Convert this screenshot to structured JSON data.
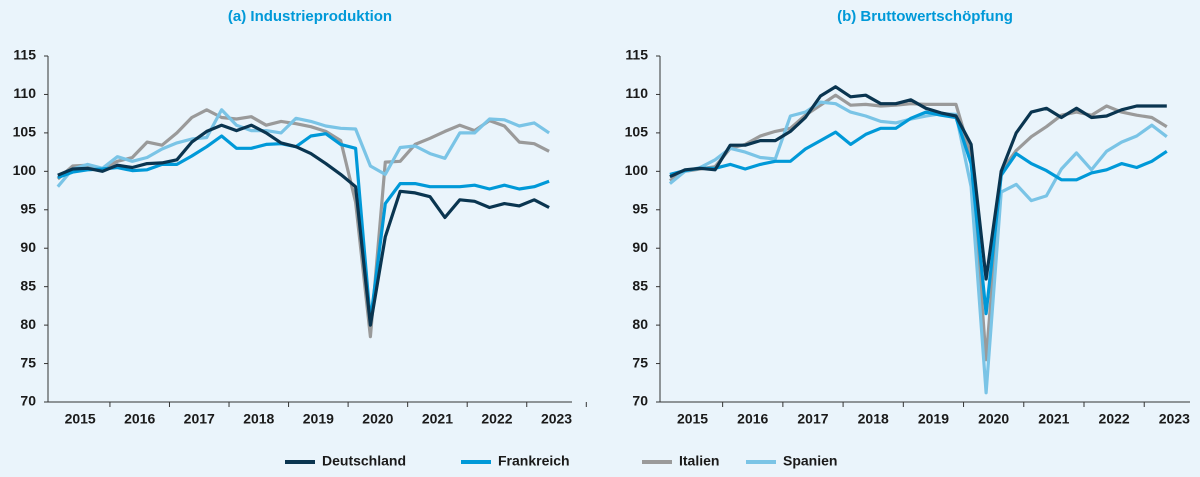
{
  "chart_data": [
    {
      "type": "line",
      "title": "(a)  Industrieproduktion",
      "x": [
        2015.125,
        2015.375,
        2015.625,
        2015.875,
        2016.125,
        2016.375,
        2016.625,
        2016.875,
        2017.125,
        2017.375,
        2017.625,
        2017.875,
        2018.125,
        2018.375,
        2018.625,
        2018.875,
        2019.125,
        2019.375,
        2019.625,
        2019.875,
        2020.125,
        2020.375,
        2020.625,
        2020.875,
        2021.125,
        2021.375,
        2021.625,
        2021.875,
        2022.125,
        2022.375,
        2022.625,
        2022.875,
        2023.125,
        2023.375
      ],
      "xlim": [
        2014.96,
        2023.76
      ],
      "xticks": [
        {
          "value": 2015.5,
          "label": "2015"
        },
        {
          "value": 2016.5,
          "label": "2016"
        },
        {
          "value": 2017.5,
          "label": "2017"
        },
        {
          "value": 2018.5,
          "label": "2018"
        },
        {
          "value": 2019.5,
          "label": "2019"
        },
        {
          "value": 2020.5,
          "label": "2020"
        },
        {
          "value": 2021.5,
          "label": "2021"
        },
        {
          "value": 2022.5,
          "label": "2022"
        },
        {
          "value": 2023.5,
          "label": "2023"
        }
      ],
      "ylim": [
        70,
        115
      ],
      "yticks": [
        70,
        75,
        80,
        85,
        90,
        95,
        100,
        105,
        110,
        115
      ],
      "series": [
        {
          "name": "Deutschland",
          "color": "#0a3550",
          "values": [
            99.5,
            100.3,
            100.4,
            100,
            100.8,
            100.5,
            101,
            101.1,
            101.5,
            103.8,
            105.2,
            106,
            105.3,
            106,
            105,
            103.7,
            103.2,
            102.3,
            101,
            99.6,
            98,
            80,
            91.5,
            97.4,
            97.2,
            96.7,
            94,
            96.3,
            96.1,
            95.3,
            95.8,
            95.5,
            96.3,
            95.3
          ]
        },
        {
          "name": "Frankreich",
          "color": "#0099d8",
          "values": [
            99.2,
            99.9,
            100.2,
            100.3,
            100.5,
            100.1,
            100.2,
            100.9,
            100.9,
            102,
            103.2,
            104.6,
            103,
            103,
            103.5,
            103.6,
            103.2,
            104.6,
            104.9,
            103.5,
            103,
            80.5,
            95.8,
            98.4,
            98.4,
            98,
            98,
            98,
            98.2,
            97.7,
            98.2,
            97.7,
            98,
            98.7
          ]
        },
        {
          "name": "Italien",
          "color": "#9a9a9a",
          "values": [
            99,
            100.7,
            100.8,
            100.3,
            101.3,
            101.8,
            103.8,
            103.4,
            105,
            107,
            108,
            107,
            106.8,
            107.1,
            106,
            106.5,
            106.2,
            105.8,
            105.2,
            104,
            96,
            78.5,
            101.2,
            101.3,
            103.5,
            104.3,
            105.2,
            106,
            105.3,
            106.6,
            105.9,
            103.8,
            103.6,
            102.6
          ]
        },
        {
          "name": "Spanien",
          "color": "#7ac4e6",
          "values": [
            98,
            100.3,
            100.9,
            100.4,
            101.9,
            101.3,
            101.8,
            102.9,
            103.7,
            104.2,
            104.4,
            108,
            106,
            105.3,
            105.3,
            105,
            106.9,
            106.5,
            105.9,
            105.6,
            105.5,
            100.7,
            99.6,
            103.1,
            103.3,
            102.3,
            101.7,
            105,
            105,
            106.8,
            106.7,
            105.9,
            106.3,
            105
          ]
        }
      ]
    },
    {
      "type": "line",
      "title": "(b)  Bruttowertschöpfung",
      "x": [
        2015.125,
        2015.375,
        2015.625,
        2015.875,
        2016.125,
        2016.375,
        2016.625,
        2016.875,
        2017.125,
        2017.375,
        2017.625,
        2017.875,
        2018.125,
        2018.375,
        2018.625,
        2018.875,
        2019.125,
        2019.375,
        2019.625,
        2019.875,
        2020.125,
        2020.375,
        2020.625,
        2020.875,
        2021.125,
        2021.375,
        2021.625,
        2021.875,
        2022.125,
        2022.375,
        2022.625,
        2022.875,
        2023.125,
        2023.375
      ],
      "xlim": [
        2014.96,
        2023.76
      ],
      "xticks": [
        {
          "value": 2015.5,
          "label": "2015"
        },
        {
          "value": 2016.5,
          "label": "2016"
        },
        {
          "value": 2017.5,
          "label": "2017"
        },
        {
          "value": 2018.5,
          "label": "2018"
        },
        {
          "value": 2019.5,
          "label": "2019"
        },
        {
          "value": 2020.5,
          "label": "2020"
        },
        {
          "value": 2021.5,
          "label": "2021"
        },
        {
          "value": 2022.5,
          "label": "2022"
        },
        {
          "value": 2023.5,
          "label": "2023"
        }
      ],
      "ylim": [
        70,
        115
      ],
      "yticks": [
        70,
        75,
        80,
        85,
        90,
        95,
        100,
        105,
        110,
        115
      ],
      "series": [
        {
          "name": "Deutschland",
          "color": "#0a3550",
          "values": [
            99.3,
            100.2,
            100.4,
            100.2,
            103.4,
            103.4,
            104,
            104,
            105.2,
            107,
            109.8,
            111,
            109.7,
            109.9,
            108.8,
            108.8,
            109.3,
            108.2,
            107.6,
            107.2,
            103.5,
            86,
            100,
            105,
            107.7,
            108.2,
            107,
            108.2,
            107,
            107.2,
            108,
            108.5,
            108.5,
            108.5
          ]
        },
        {
          "name": "Frankreich",
          "color": "#0099d8",
          "values": [
            99.6,
            100.1,
            100.4,
            100.4,
            100.9,
            100.3,
            100.9,
            101.3,
            101.3,
            102.9,
            104,
            105.1,
            103.5,
            104.8,
            105.6,
            105.6,
            106.9,
            107.7,
            107.3,
            107,
            101,
            81.5,
            99.5,
            102.3,
            101,
            100.1,
            98.9,
            98.9,
            99.8,
            100.2,
            101,
            100.5,
            101.3,
            102.6
          ]
        },
        {
          "name": "Italien",
          "color": "#9a9a9a",
          "values": [
            98.8,
            100,
            100.3,
            100.6,
            103,
            103.5,
            104.6,
            105.2,
            105.6,
            107.3,
            108.6,
            109.9,
            108.6,
            108.7,
            108.5,
            108.6,
            108.8,
            108.7,
            108.7,
            108.7,
            102,
            75.5,
            100,
            102.7,
            104.5,
            105.8,
            107.3,
            107.7,
            107.3,
            108.5,
            107.7,
            107.3,
            107,
            105.8
          ]
        },
        {
          "name": "Spanien",
          "color": "#7ac4e6",
          "values": [
            98.4,
            100,
            100.5,
            101.5,
            103,
            102.5,
            101.8,
            101.6,
            107.2,
            107.7,
            109,
            108.8,
            107.7,
            107.2,
            106.5,
            106.3,
            106.8,
            107.2,
            107.5,
            107.4,
            98,
            71.2,
            97.3,
            98.3,
            96.2,
            96.8,
            100.3,
            102.4,
            100.2,
            102.6,
            103.8,
            104.6,
            106,
            104.5
          ]
        }
      ]
    }
  ]
}
